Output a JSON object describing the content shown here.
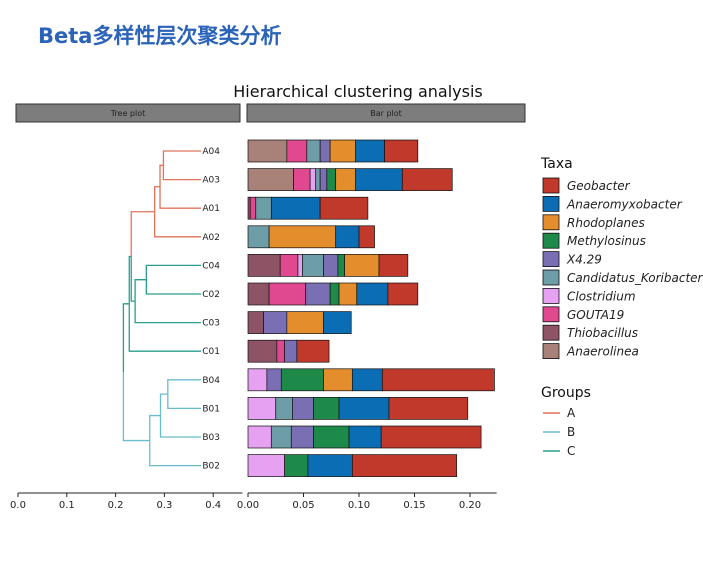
{
  "slide_title": "Beta多样性层次聚类分析",
  "chart_data": {
    "type": "bar",
    "title": "Hierarchical clustering analysis",
    "panels": {
      "tree": "Tree plot",
      "bar": "Bar plot"
    },
    "samples": [
      "A04",
      "A03",
      "A01",
      "A02",
      "C04",
      "C02",
      "C03",
      "C01",
      "B04",
      "B01",
      "B03",
      "B02"
    ],
    "stack_order": [
      "Anaerolinea",
      "Thiobacillus",
      "GOUTA19",
      "Clostridium",
      "Candidatus_Koribacter",
      "X4.29",
      "Methylosinus",
      "Rhodoplanes",
      "Anaeromyxobacter",
      "Geobacter"
    ],
    "legend_order": [
      "Geobacter",
      "Anaeromyxobacter",
      "Rhodoplanes",
      "Methylosinus",
      "X4.29",
      "Candidatus_Koribacter",
      "Clostridium",
      "GOUTA19",
      "Thiobacillus",
      "Anaerolinea"
    ],
    "colors": {
      "Geobacter": "#c0392b",
      "Anaeromyxobacter": "#0b6db3",
      "Rhodoplanes": "#e48d2c",
      "Methylosinus": "#1e8a4a",
      "X4.29": "#7a6fb3",
      "Candidatus_Koribacter": "#6d9da6",
      "Clostridium": "#e6a1f2",
      "GOUTA19": "#e0488f",
      "Thiobacillus": "#8e5466",
      "Anaerolinea": "#a88178"
    },
    "series": [
      {
        "name": "Anaerolinea",
        "values": [
          0.035,
          0.041,
          0,
          0,
          0,
          0,
          0,
          0,
          0,
          0,
          0,
          0
        ]
      },
      {
        "name": "Thiobacillus",
        "values": [
          0,
          0,
          0.002,
          0,
          0.029,
          0.019,
          0.014,
          0.026,
          0,
          0,
          0,
          0
        ]
      },
      {
        "name": "GOUTA19",
        "values": [
          0.018,
          0.015,
          0.005,
          0,
          0.016,
          0.033,
          0,
          0.007,
          0,
          0,
          0,
          0
        ]
      },
      {
        "name": "Clostridium",
        "values": [
          0,
          0.005,
          0,
          0,
          0.004,
          0,
          0,
          0,
          0.017,
          0.025,
          0.021,
          0.033
        ]
      },
      {
        "name": "Candidatus_Koribacter",
        "values": [
          0.012,
          0.004,
          0.014,
          0.019,
          0.019,
          0,
          0,
          0,
          0,
          0.015,
          0.018,
          0
        ]
      },
      {
        "name": "X4.29",
        "values": [
          0.009,
          0.006,
          0,
          0,
          0.013,
          0.022,
          0.021,
          0.011,
          0.013,
          0.019,
          0.02,
          0
        ]
      },
      {
        "name": "Methylosinus",
        "values": [
          0,
          0.008,
          0,
          0,
          0.006,
          0.008,
          0,
          0,
          0.038,
          0.023,
          0.032,
          0.021
        ]
      },
      {
        "name": "Rhodoplanes",
        "values": [
          0.023,
          0.018,
          0,
          0.06,
          0.031,
          0.016,
          0.033,
          0,
          0.026,
          0,
          0,
          0
        ]
      },
      {
        "name": "Anaeromyxobacter",
        "values": [
          0.026,
          0.042,
          0.044,
          0.021,
          0,
          0.028,
          0.025,
          0,
          0.027,
          0.045,
          0.029,
          0.04
        ]
      },
      {
        "name": "Geobacter",
        "values": [
          0.03,
          0.045,
          0.043,
          0.014,
          0.026,
          0.027,
          0,
          0.029,
          0.101,
          0.071,
          0.09,
          0.094
        ]
      }
    ],
    "bar_axis": {
      "ticks": [
        "0.00",
        "0.05",
        "0.10",
        "0.15",
        "0.20"
      ],
      "tick_values": [
        0,
        0.05,
        0.1,
        0.15,
        0.2
      ],
      "range": [
        0,
        0.224
      ]
    },
    "tree_axis": {
      "ticks": [
        "0.0",
        "0.1",
        "0.2",
        "0.3",
        "0.4"
      ],
      "tick_values": [
        0,
        0.1,
        0.2,
        0.3,
        0.4
      ],
      "range": [
        0,
        0.46
      ]
    },
    "tree": {
      "leaf_tip": 0.375,
      "nodes": {
        "n_A03A04": {
          "h": 0.298,
          "children": [
            "A04",
            "A03"
          ],
          "group": "A"
        },
        "n_A01": {
          "h": 0.291,
          "children": [
            "n_A03A04",
            "A01"
          ],
          "group": "A"
        },
        "n_A02": {
          "h": 0.28,
          "children": [
            "n_A01",
            "A02"
          ],
          "group": "A"
        },
        "n_C02C04": {
          "h": 0.263,
          "children": [
            "C04",
            "C02"
          ],
          "group": "C"
        },
        "n_C03": {
          "h": 0.24,
          "children": [
            "n_C02C04",
            "C03"
          ],
          "group": "C"
        },
        "n_CA": {
          "h": 0.232,
          "children": [
            "n_A02",
            "n_C03"
          ],
          "group": "C"
        },
        "n_C01": {
          "h": 0.228,
          "children": [
            "n_CA",
            "C01"
          ],
          "group": "C"
        },
        "n_B01B04": {
          "h": 0.307,
          "children": [
            "B04",
            "B01"
          ],
          "group": "B"
        },
        "n_B03": {
          "h": 0.292,
          "children": [
            "n_B01B04",
            "B03"
          ],
          "group": "B"
        },
        "n_B02": {
          "h": 0.27,
          "children": [
            "n_B03",
            "B02"
          ],
          "group": "B"
        },
        "root": {
          "h": 0.216,
          "children": [
            "n_C01",
            "n_B02"
          ],
          "group": "B"
        }
      },
      "root": "root",
      "leaf_groups": {
        "A04": "A",
        "A03": "A",
        "A01": "A",
        "A02": "A",
        "C04": "C",
        "C02": "C",
        "C03": "C",
        "C01": "C",
        "B04": "B",
        "B01": "B",
        "B03": "B",
        "B02": "B"
      }
    },
    "legend_taxa_title": "Taxa",
    "legend_groups_title": "Groups",
    "groups": [
      "A",
      "B",
      "C"
    ],
    "group_colors": {
      "A": "#e0735a",
      "B": "#69bcd0",
      "C": "#2a9d8f"
    }
  }
}
